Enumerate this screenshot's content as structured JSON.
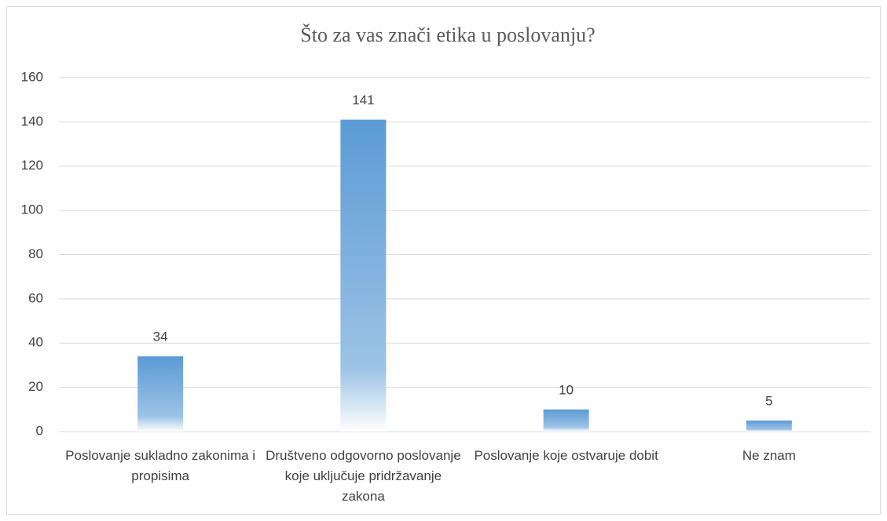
{
  "chart_data": {
    "type": "bar",
    "title": "Što za vas znači etika u poslovanju?",
    "categories": [
      "Poslovanje sukladno zakonima i propisima",
      "Društveno odgovorno poslovanje koje uključuje pridržavanje zakona",
      "Poslovanje koje ostvaruje dobit",
      "Ne znam"
    ],
    "values": [
      34,
      141,
      10,
      5
    ],
    "color": "#5b9bd5",
    "ylim": [
      0,
      160
    ],
    "yticks": [
      0,
      20,
      40,
      60,
      80,
      100,
      120,
      140,
      160
    ],
    "grid": true
  }
}
